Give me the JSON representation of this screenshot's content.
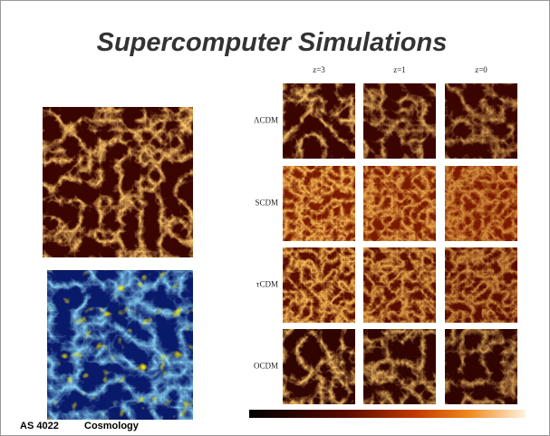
{
  "title": "Supercomputer Simulations",
  "grid": {
    "columns": [
      "z=3",
      "z=1",
      "z=0"
    ],
    "rows": [
      "ΛCDM",
      "SCDM",
      "τCDM",
      "OCDM"
    ]
  },
  "footer": {
    "course": "AS 4022",
    "topic": "Cosmology"
  }
}
